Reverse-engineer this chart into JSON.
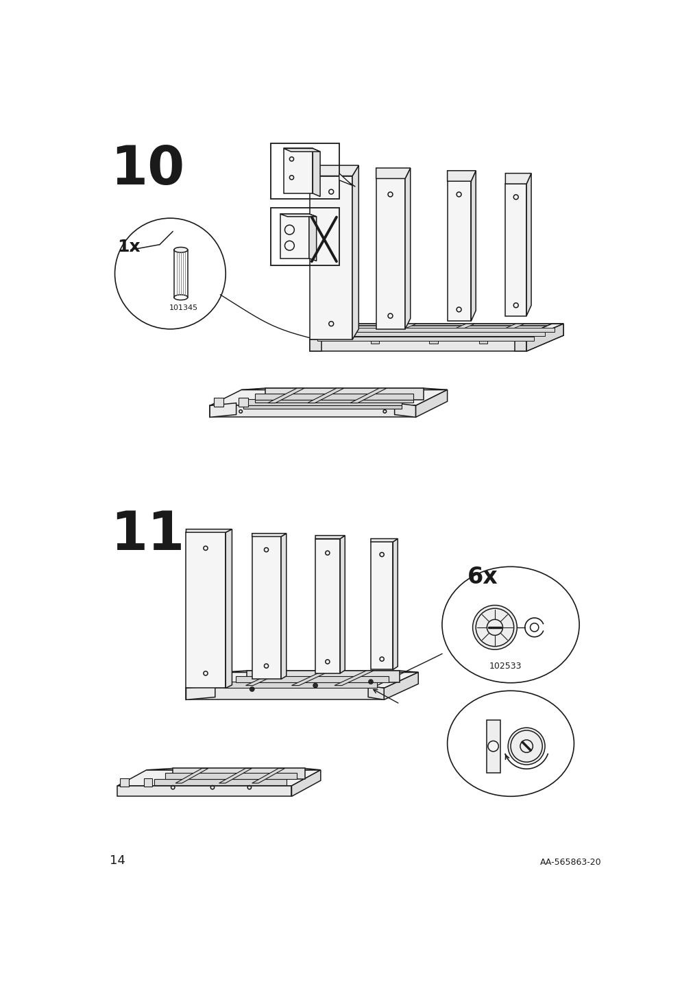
{
  "page_number": "14",
  "doc_ref": "AA-565863-20",
  "step10_label": "10",
  "step11_label": "11",
  "background_color": "#ffffff",
  "line_color": "#1a1a1a",
  "part_id_10": "101345",
  "part_id_11": "102533",
  "part_count_10": "1x",
  "part_count_11": "6x"
}
